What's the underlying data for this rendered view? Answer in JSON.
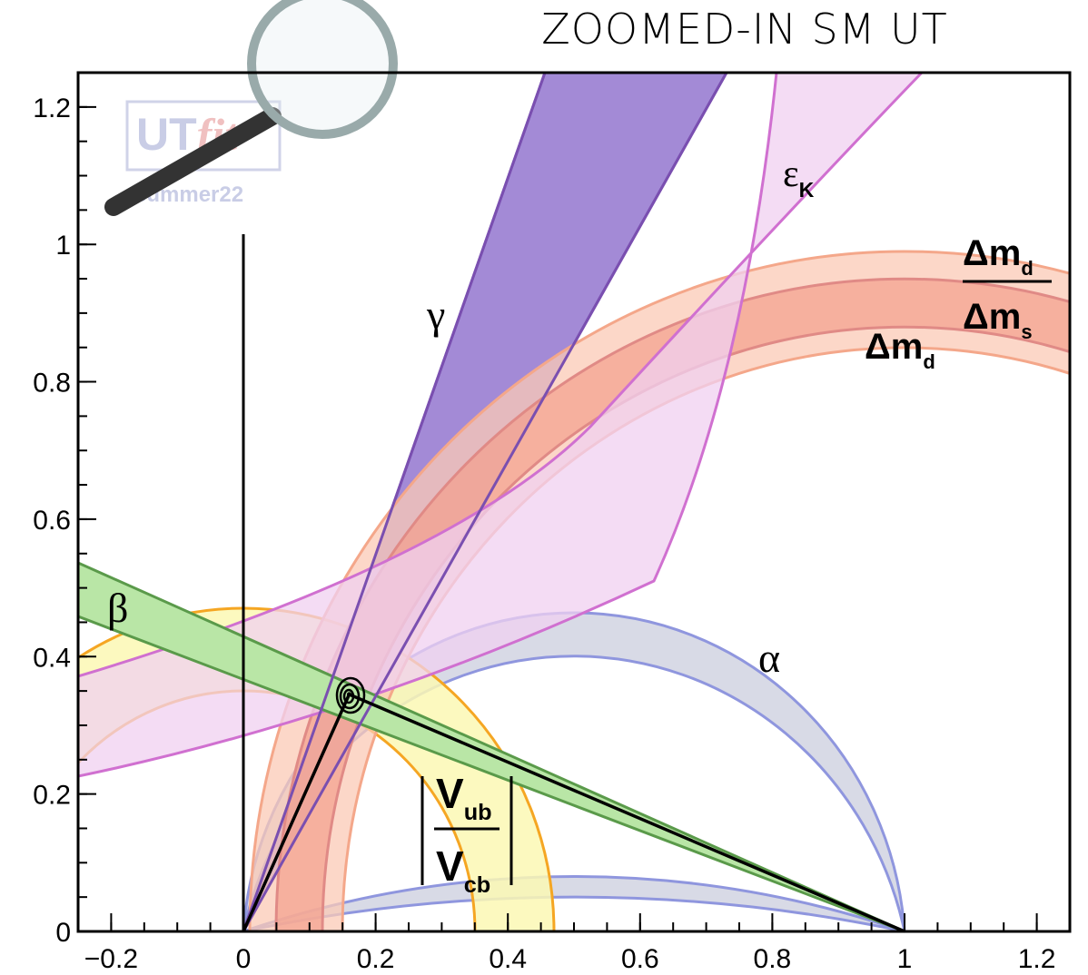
{
  "chart_data": {
    "type": "contour",
    "title": "ZOOMED-IN SM UT",
    "watermark": [
      "UT",
      "fit",
      "summer22"
    ],
    "xlim": [
      -0.25,
      1.25
    ],
    "ylim": [
      0,
      1.25
    ],
    "xticks": [
      {
        "value": -0.2,
        "label": "−0.2"
      },
      0,
      0.2,
      0.4,
      0.6,
      0.8,
      1,
      1.2
    ],
    "yticks": [
      0,
      0.2,
      0.4,
      0.6,
      0.8,
      1,
      1.2
    ],
    "triangle": {
      "x": [
        0,
        0.16,
        1
      ],
      "y": [
        0,
        0.345,
        0
      ]
    },
    "annotations": [
      {
        "text": "γ"
      },
      {
        "text": "ε",
        "sub": "K"
      },
      {
        "text": "Δm",
        "sub": "d"
      },
      {
        "text": "Δm",
        "sub": "s"
      },
      {
        "text": "Δm",
        "sub": "d"
      },
      {
        "text": "β"
      },
      {
        "text": "α"
      },
      {
        "text": "V",
        "sub": "ub"
      },
      {
        "text": "V",
        "sub": "cb"
      }
    ]
  }
}
